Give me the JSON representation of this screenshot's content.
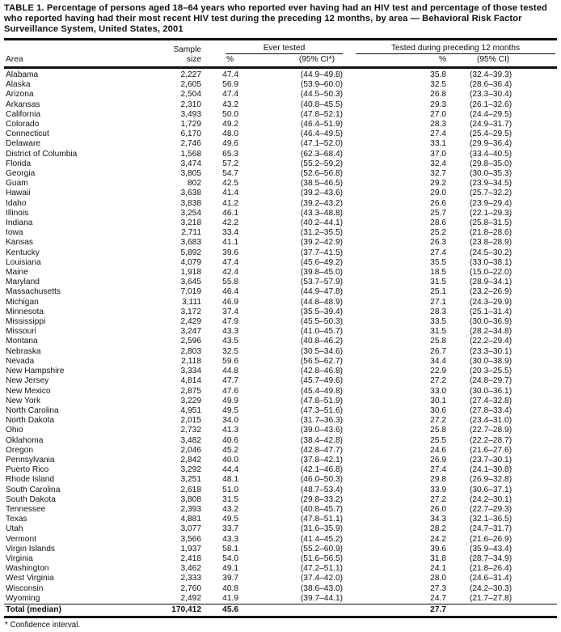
{
  "table": {
    "title": "TABLE 1. Percentage of persons aged 18–64 years who reported ever having had an HIV test and percentage of those tested who reported having had their most recent HIV test during the preceding 12 months, by area — Behavioral Risk Factor Surveillance System, United States, 2001",
    "columns": {
      "area": "Area",
      "sample_line1": "Sample",
      "sample_line2": "size",
      "group_ever_tested": "Ever tested",
      "group_tested_12mo": "Tested during preceding 12 months",
      "ever_pct": "%",
      "ever_ci": "(95% CI*)",
      "tested_pct": "%",
      "tested_ci": "(95% CI)"
    },
    "rows": [
      [
        "Alabama",
        "2,227",
        "47.4",
        "(44.9–49.8)",
        "35.8",
        "(32.4–39.3)"
      ],
      [
        "Alaska",
        "2,605",
        "56.9",
        "(53.9–60.0)",
        "32.5",
        "(28.6–36.4)"
      ],
      [
        "Arizona",
        "2,504",
        "47.4",
        "(44.5–50.3)",
        "26.8",
        "(23.3–30.4)"
      ],
      [
        "Arkansas",
        "2,310",
        "43.2",
        "(40.8–45.5)",
        "29.3",
        "(26.1–32.6)"
      ],
      [
        "California",
        "3,493",
        "50.0",
        "(47.8–52.1)",
        "27.0",
        "(24.4–29.5)"
      ],
      [
        "Colorado",
        "1,729",
        "49.2",
        "(46.4–51.9)",
        "28.3",
        "(24.9–31.7)"
      ],
      [
        "Connecticut",
        "6,170",
        "48.0",
        "(46.4–49.5)",
        "27.4",
        "(25.4–29.5)"
      ],
      [
        "Delaware",
        "2,746",
        "49.6",
        "(47.1–52.0)",
        "33.1",
        "(29.9–36.4)"
      ],
      [
        "District of Columbia",
        "1,568",
        "65.3",
        "(62.3–68.4)",
        "37.0",
        "(33.4–40.5)"
      ],
      [
        "Florida",
        "3,474",
        "57.2",
        "(55.2–59.2)",
        "32.4",
        "(29.8–35.0)"
      ],
      [
        "Georgia",
        "3,805",
        "54.7",
        "(52.6–56.8)",
        "32.7",
        "(30.0–35.3)"
      ],
      [
        "Guam",
        "802",
        "42.5",
        "(38.5–46.5)",
        "29.2",
        "(23.9–34.5)"
      ],
      [
        "Hawaii",
        "3,638",
        "41.4",
        "(39.2–43.6)",
        "29.0",
        "(25.7–32.2)"
      ],
      [
        "Idaho",
        "3,838",
        "41.2",
        "(39.2–43.2)",
        "26.6",
        "(23.9–29.4)"
      ],
      [
        "Illinois",
        "3,254",
        "46.1",
        "(43.3–48.8)",
        "25.7",
        "(22.1–29.3)"
      ],
      [
        "Indiana",
        "3,218",
        "42.2",
        "(40.2–44.1)",
        "28.6",
        "(25.8–31.5)"
      ],
      [
        "Iowa",
        "2,711",
        "33.4",
        "(31.2–35.5)",
        "25.2",
        "(21.8–28.6)"
      ],
      [
        "Kansas",
        "3,683",
        "41.1",
        "(39.2–42.9)",
        "26.3",
        "(23.8–28.9)"
      ],
      [
        "Kentucky",
        "5,892",
        "39.6",
        "(37.7–41.5)",
        "27.4",
        "(24.5–30.2)"
      ],
      [
        "Louisiana",
        "4,079",
        "47.4",
        "(45.6–49.2)",
        "35.5",
        "(33.0–38.1)"
      ],
      [
        "Maine",
        "1,918",
        "42.4",
        "(39.8–45.0)",
        "18.5",
        "(15.0–22.0)"
      ],
      [
        "Maryland",
        "3,645",
        "55.8",
        "(53.7–57.9)",
        "31.5",
        "(28.9–34.1)"
      ],
      [
        "Massachusetts",
        "7,019",
        "46.4",
        "(44.9–47.8)",
        "25.1",
        "(23.2–26.9)"
      ],
      [
        "Michigan",
        "3,111",
        "46.9",
        "(44.8–48.9)",
        "27.1",
        "(24.3–29.9)"
      ],
      [
        "Minnesota",
        "3,172",
        "37.4",
        "(35.5–39.4)",
        "28.3",
        "(25.1–31.4)"
      ],
      [
        "Mississippi",
        "2,429",
        "47.9",
        "(45.5–50.3)",
        "33.5",
        "(30.0–36.9)"
      ],
      [
        "Missouri",
        "3,247",
        "43.3",
        "(41.0–45.7)",
        "31.5",
        "(28.2–34.8)"
      ],
      [
        "Montana",
        "2,596",
        "43.5",
        "(40.8–46.2)",
        "25.8",
        "(22.2–29.4)"
      ],
      [
        "Nebraska",
        "2,803",
        "32.5",
        "(30.5–34.6)",
        "26.7",
        "(23.3–30.1)"
      ],
      [
        "Nevada",
        "2,118",
        "59.6",
        "(56.5–62.7)",
        "34.4",
        "(30.0–38.9)"
      ],
      [
        "New Hampshire",
        "3,334",
        "44.8",
        "(42.8–46.8)",
        "22.9",
        "(20.3–25.5)"
      ],
      [
        "New Jersey",
        "4,814",
        "47.7",
        "(45.7–49.6)",
        "27.2",
        "(24.8–29.7)"
      ],
      [
        "New Mexico",
        "2,875",
        "47.6",
        "(45.4–49.8)",
        "33.0",
        "(30.0–36.1)"
      ],
      [
        "New York",
        "3,229",
        "49.9",
        "(47.8–51.9)",
        "30.1",
        "(27.4–32.8)"
      ],
      [
        "North Carolina",
        "4,951",
        "49.5",
        "(47.3–51.6)",
        "30.6",
        "(27.8–33.4)"
      ],
      [
        "North Dakota",
        "2,015",
        "34.0",
        "(31.7–36.3)",
        "27.2",
        "(23.4–31.0)"
      ],
      [
        "Ohio",
        "2,732",
        "41.3",
        "(39.0–43.6)",
        "25.8",
        "(22.7–28.9)"
      ],
      [
        "Oklahoma",
        "3,482",
        "40.6",
        "(38.4–42.8)",
        "25.5",
        "(22.2–28.7)"
      ],
      [
        "Oregon",
        "2,046",
        "45.2",
        "(42.8–47.7)",
        "24.6",
        "(21.6–27.6)"
      ],
      [
        "Pennsylvania",
        "2,842",
        "40.0",
        "(37.8–42.1)",
        "26.9",
        "(23.7–30.1)"
      ],
      [
        "Puerto Rico",
        "3,292",
        "44.4",
        "(42.1–46.8)",
        "27.4",
        "(24.1–30.8)"
      ],
      [
        "Rhode Island",
        "3,251",
        "48.1",
        "(46.0–50.3)",
        "29.8",
        "(26.9–32.8)"
      ],
      [
        "South Carolina",
        "2,618",
        "51.0",
        "(48.7–53.4)",
        "33.9",
        "(30.6–37.1)"
      ],
      [
        "South Dakota",
        "3,808",
        "31.5",
        "(29.8–33.2)",
        "27.2",
        "(24.2–30.1)"
      ],
      [
        "Tennessee",
        "2,393",
        "43.2",
        "(40.8–45.7)",
        "26.0",
        "(22.7–29.3)"
      ],
      [
        "Texas",
        "4,881",
        "49.5",
        "(47.8–51.1)",
        "34.3",
        "(32.1–36.5)"
      ],
      [
        "Utah",
        "3,077",
        "33.7",
        "(31.6–35.9)",
        "28.2",
        "(24.7–31.7)"
      ],
      [
        "Vermont",
        "3,566",
        "43.3",
        "(41.4–45.2)",
        "24.2",
        "(21.6–26.9)"
      ],
      [
        "Virgin Islands",
        "1,937",
        "58.1",
        "(55.2–60.9)",
        "39.6",
        "(35.9–43.4)"
      ],
      [
        "Virginia",
        "2,418",
        "54.0",
        "(51.6–56.5)",
        "31.8",
        "(28.7–34.9)"
      ],
      [
        "Washington",
        "3,462",
        "49.1",
        "(47.2–51.1)",
        "24.1",
        "(21.8–26.4)"
      ],
      [
        "West Virginia",
        "2,333",
        "39.7",
        "(37.4–42.0)",
        "28.0",
        "(24.6–31.4)"
      ],
      [
        "Wisconsin",
        "2,760",
        "40.8",
        "(38.6–43.0)",
        "27.3",
        "(24.2–30.3)"
      ],
      [
        "Wyoming",
        "2,492",
        "41.9",
        "(39.7–44.1)",
        "24.7",
        "(21.7–27.8)"
      ]
    ],
    "total": {
      "area": "Total (median)",
      "sample": "170,412",
      "ever_pct": "45.6",
      "ever_ci": "",
      "tested_pct": "27.7",
      "tested_ci": ""
    },
    "footnote": "* Confidence interval."
  }
}
